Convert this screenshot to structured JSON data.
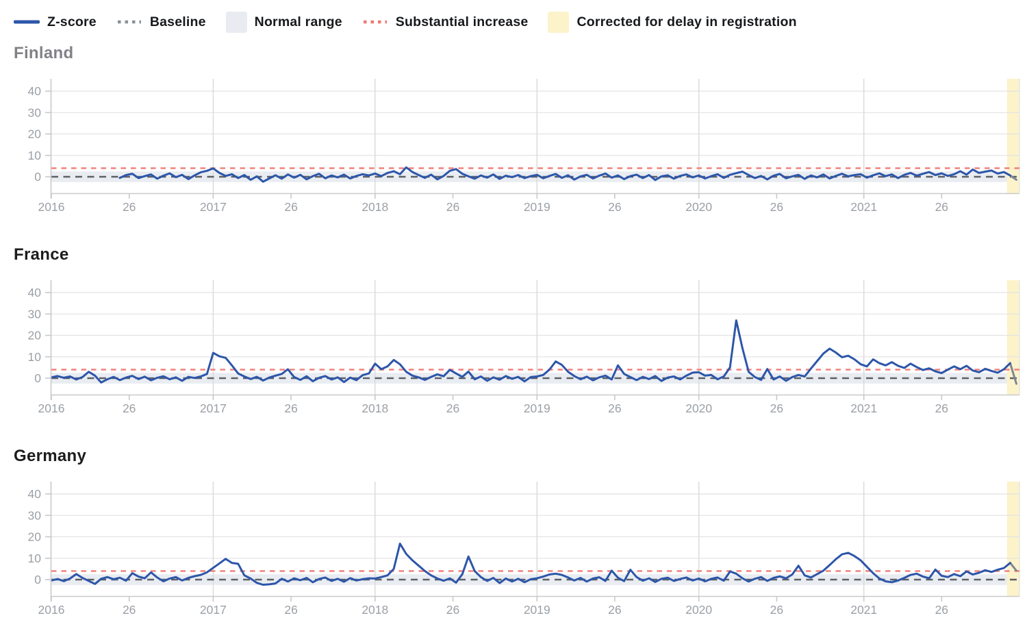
{
  "legend": {
    "items": [
      {
        "label": "Z-score",
        "swatch": "line",
        "color": "#2d56a9",
        "icon": "z-score-line-swatch"
      },
      {
        "label": "Baseline",
        "swatch": "dotted",
        "color": "#8b9097",
        "icon": "baseline-dotted-swatch"
      },
      {
        "label": "Normal range",
        "swatch": "box",
        "color": "#e8ecf1",
        "icon": "normal-range-box-swatch"
      },
      {
        "label": "Substantial increase",
        "swatch": "dotted",
        "color": "#ee7a72",
        "icon": "substantial-increase-dotted-swatch"
      },
      {
        "label": "Corrected for delay in registration",
        "swatch": "box",
        "color": "#fcf3cb",
        "icon": "corrected-delay-box-swatch"
      }
    ]
  },
  "axes": {
    "y_ticks": [
      0,
      10,
      20,
      30,
      40
    ],
    "x_tick_weeks": [
      0,
      25,
      52,
      77,
      104,
      129,
      156,
      181,
      208,
      233,
      261,
      286
    ],
    "x_tick_labels": [
      "2016",
      "26",
      "2017",
      "26",
      "2018",
      "26",
      "2019",
      "26",
      "2020",
      "26",
      "2021",
      "26"
    ],
    "x_gridline_weeks": [
      52,
      104,
      156,
      208,
      261
    ],
    "ylim": [
      -7.7,
      45.8
    ],
    "total_weeks": 312,
    "baseline_value": 0,
    "substantial_increase_value": 4,
    "normal_range": [
      -2.5,
      2.5
    ],
    "corrected_from_week": 307,
    "gray_tail_from_week": 308
  },
  "colors": {
    "zscore": "#2d56a9",
    "zscore_delayed": "#7e8796",
    "baseline": "#5d6066",
    "substantial": "#f0827b",
    "normal_band": "#e9edf2",
    "corrected_band": "#fcf3cb",
    "grid": "#e2e2e2",
    "axis": "#c9c9c9",
    "tick_label": "#9ba0a6"
  },
  "chart_data": [
    {
      "type": "line",
      "title": "Finland",
      "title_color": "#818187",
      "x_unit": "ISO week (ticks: year start and week 26)",
      "y_unit": "Z-score",
      "start_week": 22,
      "week_step": 2,
      "values": [
        -0.5,
        0.8,
        1.4,
        -0.6,
        0.3,
        1.1,
        -0.9,
        0.5,
        1.6,
        -0.2,
        0.9,
        -1.1,
        0.6,
        2.1,
        2.8,
        3.9,
        1.8,
        0.4,
        1.2,
        -0.6,
        0.8,
        -1.4,
        0.2,
        -2.3,
        -0.8,
        0.7,
        -0.9,
        1.1,
        -0.4,
        0.9,
        -1.2,
        0.3,
        1.4,
        -0.7,
        0.6,
        -0.3,
        1.0,
        -0.8,
        0.4,
        1.2,
        0.6,
        1.5,
        0.3,
        1.8,
        2.6,
        1.2,
        4.4,
        2.2,
        0.8,
        -0.5,
        1.0,
        -1.2,
        0.4,
        2.8,
        3.6,
        1.4,
        0.2,
        -0.9,
        0.6,
        -0.4,
        1.1,
        -1.0,
        0.5,
        -0.2,
        0.8,
        -0.6,
        0.3,
        0.9,
        -0.7,
        0.4,
        1.3,
        -0.5,
        0.7,
        -1.3,
        0.2,
        0.9,
        -0.8,
        0.5,
        1.5,
        -0.4,
        0.6,
        -1.1,
        0.3,
        1.0,
        -0.6,
        0.8,
        -1.5,
        0.2,
        0.7,
        -0.9,
        0.4,
        1.1,
        -0.3,
        0.6,
        -0.8,
        0.3,
        1.2,
        -0.5,
        0.9,
        1.7,
        2.4,
        0.8,
        -0.6,
        0.4,
        -1.2,
        0.5,
        1.3,
        -0.7,
        0.2,
        0.9,
        -1.0,
        0.6,
        -0.3,
        1.1,
        -0.8,
        0.4,
        1.4,
        0.2,
        0.8,
        1.2,
        -0.4,
        0.7,
        1.6,
        0.3,
        1.1,
        -0.6,
        0.9,
        1.8,
        0.5,
        1.4,
        2.2,
        0.8,
        1.6,
        0.4,
        1.2,
        2.6,
        1.0,
        3.4,
        1.8,
        2.4,
        2.9,
        1.5,
        2.2,
        0.6,
        -1.4
      ]
    },
    {
      "type": "line",
      "title": "France",
      "title_color": "#1c1c1e",
      "x_unit": "ISO week (ticks: year start and week 26)",
      "y_unit": "Z-score",
      "start_week": 0,
      "week_step": 2,
      "values": [
        0.4,
        1.0,
        0.2,
        0.8,
        -0.6,
        0.5,
        3.0,
        1.2,
        -2.0,
        -0.5,
        0.6,
        -0.9,
        0.3,
        1.1,
        -0.4,
        0.7,
        -1.0,
        0.2,
        0.9,
        -0.5,
        0.4,
        -1.2,
        0.6,
        0.1,
        0.8,
        2.0,
        11.8,
        10.2,
        9.5,
        6.0,
        2.2,
        0.8,
        -0.4,
        0.6,
        -1.1,
        0.3,
        1.2,
        2.0,
        4.2,
        0.5,
        -0.8,
        0.9,
        -1.4,
        0.2,
        1.0,
        -0.6,
        0.4,
        -1.8,
        0.3,
        -0.9,
        1.4,
        2.2,
        6.8,
        4.2,
        5.5,
        8.5,
        6.5,
        3.0,
        1.2,
        0.4,
        -0.8,
        0.6,
        1.8,
        0.9,
        3.9,
        2.2,
        0.6,
        3.1,
        -0.5,
        0.8,
        -1.2,
        0.4,
        -0.7,
        1.0,
        -0.3,
        0.6,
        -1.5,
        0.5,
        0.8,
        1.5,
        4.0,
        7.8,
        6.2,
        3.0,
        1.0,
        -0.5,
        0.7,
        -1.0,
        0.4,
        1.2,
        -0.6,
        6.0,
        2.0,
        0.5,
        -0.9,
        0.6,
        -0.4,
        1.0,
        -1.3,
        0.3,
        0.8,
        -0.6,
        1.2,
        2.6,
        2.8,
        1.2,
        1.5,
        -0.5,
        0.8,
        5.0,
        27.0,
        14.0,
        3.0,
        0.5,
        -0.8,
        4.3,
        -0.6,
        0.8,
        -1.2,
        0.5,
        1.5,
        0.8,
        4.5,
        8.0,
        11.5,
        13.8,
        12.0,
        9.8,
        10.5,
        8.8,
        6.5,
        5.5,
        8.8,
        7.0,
        6.0,
        7.5,
        5.8,
        4.8,
        6.8,
        5.2,
        3.8,
        4.6,
        3.2,
        2.4,
        4.0,
        5.5,
        4.2,
        5.8,
        3.6,
        2.8,
        4.4,
        3.4,
        2.6,
        4.2,
        7.0,
        -2.6
      ]
    },
    {
      "type": "line",
      "title": "Germany",
      "title_color": "#1c1c1e",
      "x_unit": "ISO week (ticks: year start and week 26)",
      "y_unit": "Z-score",
      "start_week": 0,
      "week_step": 2,
      "values": [
        -0.4,
        0.3,
        -0.7,
        0.5,
        2.6,
        0.8,
        -0.6,
        -2.0,
        0.4,
        1.2,
        0.2,
        0.9,
        -0.5,
        3.0,
        1.4,
        0.6,
        3.4,
        1.0,
        -0.8,
        0.5,
        1.2,
        -0.4,
        0.8,
        1.6,
        2.2,
        3.4,
        5.5,
        7.6,
        9.7,
        7.8,
        7.4,
        2.0,
        0.5,
        -1.5,
        -2.4,
        -2.2,
        -1.8,
        0.4,
        -0.9,
        0.6,
        -0.3,
        0.8,
        -1.2,
        0.3,
        1.0,
        -0.6,
        0.4,
        -1.0,
        0.7,
        -0.4,
        0.2,
        0.6,
        0.5,
        1.2,
        2.0,
        5.0,
        16.8,
        12.0,
        9.0,
        6.5,
        4.0,
        2.0,
        0.5,
        -0.5,
        0.6,
        -1.4,
        2.5,
        10.8,
        4.0,
        1.2,
        -0.6,
        0.8,
        -1.6,
        0.5,
        -0.9,
        0.4,
        -1.2,
        0.2,
        0.6,
        1.4,
        2.4,
        2.8,
        2.2,
        1.0,
        -0.4,
        0.8,
        -0.9,
        0.5,
        1.1,
        -0.6,
        4.2,
        0.9,
        -0.7,
        4.6,
        1.2,
        -0.5,
        0.6,
        -1.1,
        0.4,
        0.9,
        -0.6,
        0.3,
        1.0,
        -0.4,
        0.5,
        -0.8,
        0.4,
        1.0,
        -0.5,
        3.8,
        2.8,
        0.6,
        -0.9,
        0.4,
        1.2,
        -0.6,
        0.8,
        1.5,
        0.6,
        2.4,
        6.5,
        2.0,
        1.0,
        2.6,
        4.2,
        6.8,
        9.5,
        11.8,
        12.5,
        11.0,
        9.0,
        6.0,
        3.0,
        0.5,
        -0.8,
        -1.2,
        -0.4,
        0.8,
        2.2,
        2.8,
        1.4,
        0.6,
        4.7,
        1.8,
        1.2,
        2.6,
        1.6,
        3.8,
        2.4,
        3.2,
        4.4,
        3.6,
        4.6,
        5.4,
        7.8,
        4.2
      ]
    }
  ]
}
